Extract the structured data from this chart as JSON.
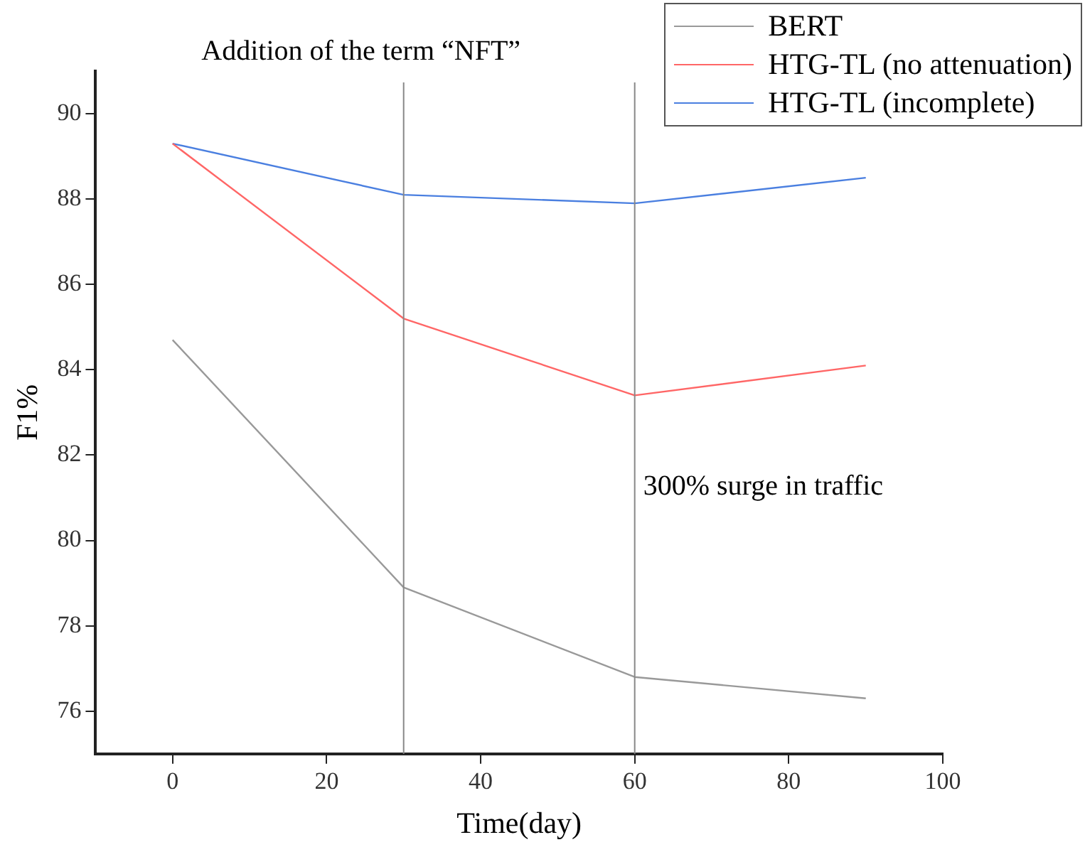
{
  "chart_data": {
    "type": "line",
    "xlabel": "Time(day)",
    "ylabel": "F1%",
    "x": [
      0,
      30,
      60,
      90
    ],
    "series": [
      {
        "name": "BERT",
        "color": "#999999",
        "values": [
          84.7,
          78.9,
          76.8,
          76.3
        ]
      },
      {
        "name": "HTG-TL (no attenuation)",
        "color": "#ff6666",
        "values": [
          89.3,
          85.2,
          83.4,
          84.1
        ]
      },
      {
        "name": "HTG-TL (incomplete)",
        "color": "#4a7fe0",
        "values": [
          89.3,
          88.1,
          87.9,
          88.5
        ]
      }
    ],
    "xlim": [
      -10,
      100
    ],
    "xticks": [
      0,
      20,
      40,
      60,
      80,
      100
    ],
    "ylim": [
      75,
      91
    ],
    "yticks": [
      76,
      78,
      80,
      82,
      84,
      86,
      88,
      90
    ],
    "ref_lines": [
      {
        "axis": "x",
        "value": 30,
        "label": "Addition of the term “NFT”",
        "color": "#888888"
      },
      {
        "axis": "x",
        "value": 60,
        "label": "300% surge in traffic",
        "color": "#888888"
      }
    ],
    "grid": false,
    "legend": "top right",
    "marker": "none",
    "line_style": "solid"
  }
}
